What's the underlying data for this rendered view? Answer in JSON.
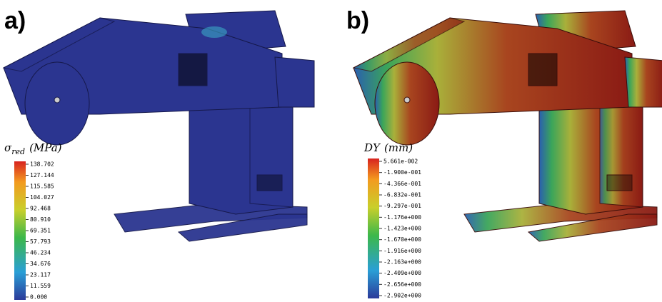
{
  "panels": [
    {
      "label": "a)",
      "legend": {
        "symbol": "σ",
        "subscript": "red",
        "unit": "(MPa)",
        "ticks": [
          "138.702",
          "127.144",
          "115.585",
          "104.027",
          "92.468",
          "80.910",
          "69.351",
          "57.793",
          "46.234",
          "34.676",
          "23.117",
          "11.559",
          "0.000"
        ]
      }
    },
    {
      "label": "b)",
      "legend": {
        "symbol": "DY",
        "unit": "(mm)",
        "ticks": [
          "5.661e-002",
          "-1.900e-001",
          "-4.366e-001",
          "-6.832e-001",
          "-9.297e-001",
          "-1.176e+000",
          "-1.423e+000",
          "-1.670e+000",
          "-1.916e+000",
          "-2.163e+000",
          "-2.409e+000",
          "-2.656e+000",
          "-2.902e+000"
        ]
      }
    }
  ]
}
